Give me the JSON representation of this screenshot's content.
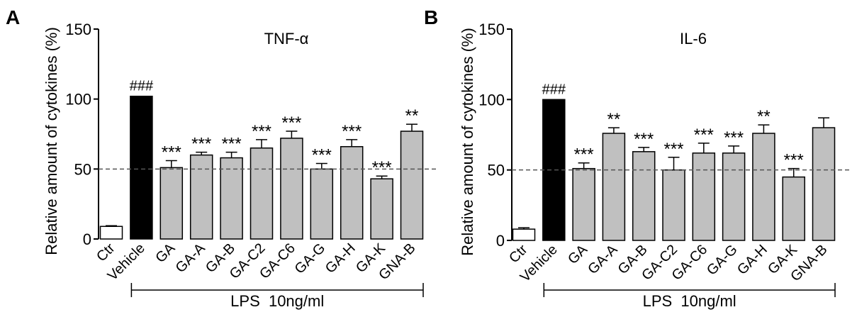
{
  "colors": {
    "control": "#ffffff",
    "vehicle": "#000000",
    "treated": "#c0c0c0",
    "axis": "#000000",
    "reference": "#555555"
  },
  "chart_data": [
    {
      "type": "bar",
      "panel_label": "A",
      "title": "TNF-α",
      "ylabel": "Relative amount of cytokines (%)",
      "xlabel": "",
      "ylim": [
        0,
        150
      ],
      "yticks": [
        0,
        50,
        100,
        150
      ],
      "reference_line": 50,
      "categories": [
        "Ctr",
        "Vehicle",
        "GA",
        "GA-A",
        "GA-B",
        "GA-C2",
        "GA-C6",
        "GA-G",
        "GA-H",
        "GA-K",
        "GNA-B"
      ],
      "values": [
        9,
        102,
        51,
        60,
        58,
        65,
        72,
        50,
        66,
        43,
        77
      ],
      "errors": [
        0.5,
        0,
        5,
        2,
        4,
        6,
        5,
        4,
        5,
        2,
        5
      ],
      "bar_colors": [
        "control",
        "vehicle",
        "treated",
        "treated",
        "treated",
        "treated",
        "treated",
        "treated",
        "treated",
        "treated",
        "treated"
      ],
      "annotations": [
        "",
        "###",
        "***",
        "***",
        "***",
        "***",
        "***",
        "***",
        "***",
        "***",
        "**"
      ],
      "bracket_label": "LPS  10ng/ml",
      "bracket_range": [
        "Vehicle",
        "GNA-B"
      ]
    },
    {
      "type": "bar",
      "panel_label": "B",
      "title": "IL-6",
      "ylabel": "Relative amount of cytokines (%)",
      "xlabel": "",
      "ylim": [
        0,
        150
      ],
      "yticks": [
        0,
        50,
        100,
        150
      ],
      "reference_line": 50,
      "categories": [
        "Ctr",
        "Vehicle",
        "GA",
        "GA-A",
        "GA-B",
        "GA-C2",
        "GA-C6",
        "GA-G",
        "GA-H",
        "GA-K",
        "GNA-B"
      ],
      "values": [
        8,
        100,
        51,
        76,
        63,
        50,
        62,
        62,
        76,
        45,
        80
      ],
      "errors": [
        1,
        0,
        4,
        4,
        3,
        9,
        7,
        5,
        6,
        6,
        7
      ],
      "bar_colors": [
        "control",
        "vehicle",
        "treated",
        "treated",
        "treated",
        "treated",
        "treated",
        "treated",
        "treated",
        "treated",
        "treated"
      ],
      "annotations": [
        "",
        "###",
        "***",
        "**",
        "***",
        "***",
        "***",
        "***",
        "**",
        "***",
        ""
      ],
      "bracket_label": "LPS  10ng/ml",
      "bracket_range": [
        "Vehicle",
        "GNA-B"
      ]
    }
  ]
}
